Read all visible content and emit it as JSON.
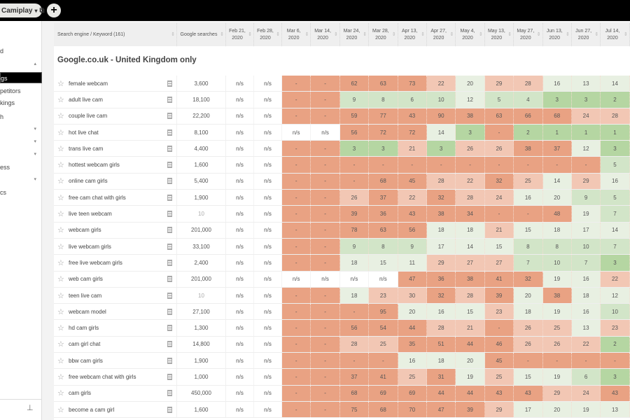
{
  "topbar": {
    "project": "Camiplay",
    "dropdown_icon": "▾",
    "edit_icon": "⧉",
    "add_label": "+"
  },
  "sidebar": {
    "items": [
      {
        "label": "d",
        "caret": ""
      },
      {
        "label": "",
        "caret": "▴"
      },
      {
        "label": "gs",
        "caret": "",
        "active": true
      },
      {
        "label": "petitors",
        "caret": ""
      },
      {
        "label": "kings",
        "caret": ""
      },
      {
        "label": "h",
        "caret": ""
      },
      {
        "label": "",
        "caret": "▾"
      },
      {
        "label": "",
        "caret": "▾"
      },
      {
        "label": "",
        "caret": "▾"
      },
      {
        "label": "ess",
        "caret": ""
      },
      {
        "label": "",
        "caret": "▾"
      },
      {
        "label": "cs",
        "caret": ""
      }
    ],
    "pin_icon": "⊥"
  },
  "table": {
    "headers": [
      "Search engine / Keyword (161)",
      "Google searches",
      "Feb 21, 2020",
      "Feb 28, 2020",
      "Mar 6, 2020",
      "Mar 14, 2020",
      "Mar 24, 2020",
      "Mar 28, 2020",
      "Apr 13, 2020",
      "Apr 27, 2020",
      "May 4, 2020",
      "May 13, 2020",
      "May 27, 2020",
      "Jun 13, 2020",
      "Jun 27, 2020",
      "Jul 14, 2020"
    ],
    "section_title": "Google.co.uk - United Kingdom only",
    "rows": [
      {
        "keyword": "female webcam",
        "searches": "3,600",
        "cells": [
          "n/s",
          "n/s",
          "-",
          "-",
          "62",
          "63",
          "73",
          "22",
          "20",
          "29",
          "28",
          "16",
          "13",
          "14"
        ]
      },
      {
        "keyword": "adult live cam",
        "searches": "18,100",
        "cells": [
          "n/s",
          "n/s",
          "-",
          "-",
          "9",
          "8",
          "6",
          "10",
          "12",
          "5",
          "4",
          "3",
          "3",
          "2"
        ]
      },
      {
        "keyword": "couple live cam",
        "searches": "22,200",
        "cells": [
          "n/s",
          "n/s",
          "-",
          "-",
          "59",
          "77",
          "43",
          "90",
          "38",
          "63",
          "66",
          "68",
          "24",
          "28"
        ]
      },
      {
        "keyword": "hot live chat",
        "searches": "8,100",
        "cells": [
          "n/s",
          "n/s",
          "n/s",
          "n/s",
          "56",
          "72",
          "72",
          "14",
          "3",
          "-",
          "2",
          "1",
          "1",
          "1"
        ]
      },
      {
        "keyword": "trans live cam",
        "searches": "4,400",
        "cells": [
          "n/s",
          "n/s",
          "-",
          "-",
          "3",
          "3",
          "21",
          "3",
          "26",
          "26",
          "38",
          "37",
          "12",
          "3"
        ]
      },
      {
        "keyword": "hottest webcam girls",
        "searches": "1,600",
        "cells": [
          "n/s",
          "n/s",
          "-",
          "-",
          "-",
          "-",
          "-",
          "-",
          "-",
          "-",
          "-",
          "-",
          "-",
          "5"
        ]
      },
      {
        "keyword": "online cam girls",
        "searches": "5,400",
        "cells": [
          "n/s",
          "n/s",
          "-",
          "-",
          "-",
          "68",
          "45",
          "28",
          "22",
          "32",
          "25",
          "14",
          "29",
          "16"
        ]
      },
      {
        "keyword": "free cam chat with girls",
        "searches": "1,900",
        "cells": [
          "n/s",
          "n/s",
          "-",
          "-",
          "26",
          "37",
          "22",
          "32",
          "28",
          "24",
          "16",
          "20",
          "9",
          "5"
        ]
      },
      {
        "keyword": "live teen webcam",
        "searches": "10",
        "cells": [
          "n/s",
          "n/s",
          "-",
          "-",
          "39",
          "36",
          "43",
          "38",
          "34",
          "-",
          "-",
          "48",
          "19",
          "7"
        ]
      },
      {
        "keyword": "webcam girls",
        "searches": "201,000",
        "cells": [
          "n/s",
          "n/s",
          "-",
          "-",
          "78",
          "63",
          "56",
          "18",
          "18",
          "21",
          "15",
          "18",
          "17",
          "14"
        ]
      },
      {
        "keyword": "live webcam girls",
        "searches": "33,100",
        "cells": [
          "n/s",
          "n/s",
          "-",
          "-",
          "9",
          "8",
          "9",
          "17",
          "14",
          "15",
          "8",
          "8",
          "10",
          "7"
        ]
      },
      {
        "keyword": "free live webcam girls",
        "searches": "2,400",
        "cells": [
          "n/s",
          "n/s",
          "-",
          "-",
          "18",
          "15",
          "11",
          "29",
          "27",
          "27",
          "7",
          "10",
          "7",
          "3"
        ]
      },
      {
        "keyword": "web cam girls",
        "searches": "201,000",
        "cells": [
          "n/s",
          "n/s",
          "n/s",
          "n/s",
          "n/s",
          "n/s",
          "47",
          "36",
          "38",
          "41",
          "32",
          "19",
          "16",
          "22"
        ]
      },
      {
        "keyword": "teen live cam",
        "searches": "10",
        "cells": [
          "n/s",
          "n/s",
          "-",
          "-",
          "18",
          "23",
          "30",
          "32",
          "28",
          "39",
          "20",
          "38",
          "18",
          "12"
        ]
      },
      {
        "keyword": "webcam model",
        "searches": "27,100",
        "cells": [
          "n/s",
          "n/s",
          "-",
          "-",
          "-",
          "95",
          "20",
          "16",
          "15",
          "23",
          "18",
          "19",
          "16",
          "10"
        ]
      },
      {
        "keyword": "hd cam girls",
        "searches": "1,300",
        "cells": [
          "n/s",
          "n/s",
          "-",
          "-",
          "56",
          "54",
          "44",
          "28",
          "21",
          "-",
          "26",
          "25",
          "13",
          "23"
        ]
      },
      {
        "keyword": "cam girl chat",
        "searches": "14,800",
        "cells": [
          "n/s",
          "n/s",
          "-",
          "-",
          "28",
          "25",
          "35",
          "51",
          "44",
          "46",
          "26",
          "26",
          "22",
          "2"
        ]
      },
      {
        "keyword": "bbw cam girls",
        "searches": "1,900",
        "cells": [
          "n/s",
          "n/s",
          "-",
          "-",
          "-",
          "-",
          "16",
          "18",
          "20",
          "45",
          "-",
          "-",
          "-",
          "-"
        ]
      },
      {
        "keyword": "free webcam chat with girls",
        "searches": "1,000",
        "cells": [
          "n/s",
          "n/s",
          "-",
          "-",
          "37",
          "41",
          "25",
          "31",
          "19",
          "25",
          "15",
          "19",
          "6",
          "3"
        ]
      },
      {
        "keyword": "cam girls",
        "searches": "450,000",
        "cells": [
          "n/s",
          "n/s",
          "-",
          "-",
          "68",
          "69",
          "69",
          "44",
          "44",
          "43",
          "43",
          "29",
          "24",
          "43"
        ]
      },
      {
        "keyword": "become a cam girl",
        "searches": "1,600",
        "cells": [
          "n/s",
          "n/s",
          "-",
          "-",
          "75",
          "68",
          "70",
          "47",
          "39",
          "29",
          "17",
          "20",
          "19",
          "13"
        ]
      }
    ]
  },
  "colors": {
    "dark": "#e9a283",
    "light": "#f2c7b4",
    "pale": "#e8f0e2",
    "lightgreen": "#d2e5c8",
    "green": "#b5d6a2"
  }
}
